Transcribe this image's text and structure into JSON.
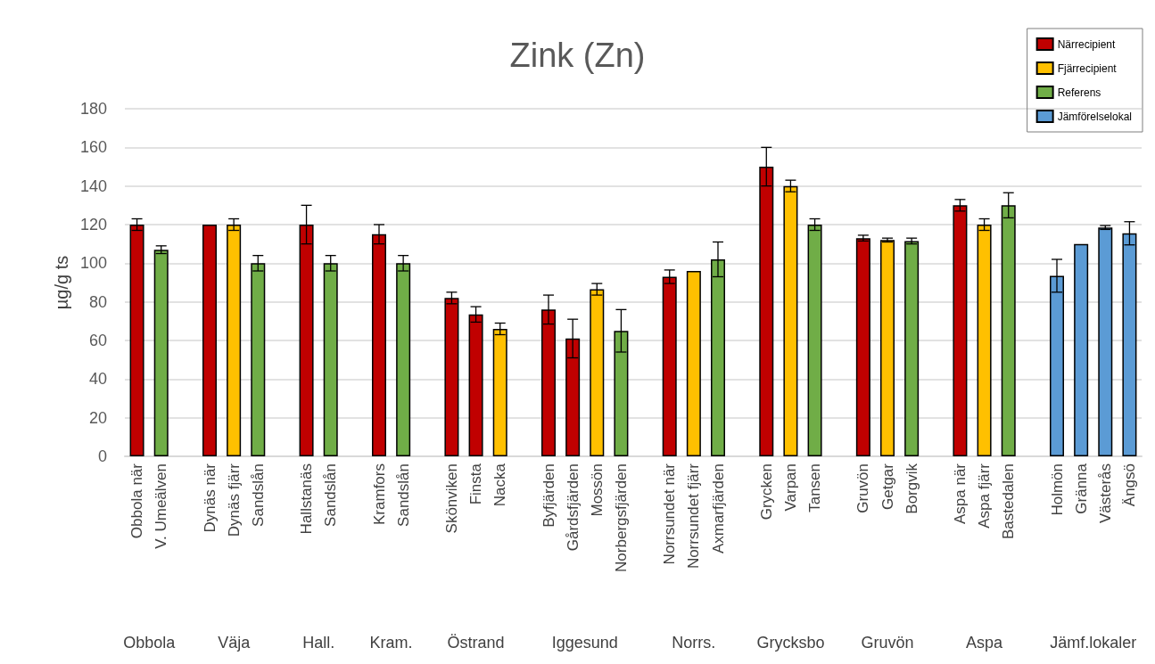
{
  "chart_data": {
    "type": "bar",
    "title": "Zink (Zn)",
    "ylabel": "µg/g ts",
    "categories": [
      "Obbola när",
      "V. Umeälven",
      null,
      "Dynäs när",
      "Dynäs fjärr",
      "Sandslån",
      null,
      "Hallstanäs",
      "Sandslån",
      null,
      "Kramfors",
      "Sandslån",
      null,
      "Skönviken",
      "Finsta",
      "Nacka",
      null,
      "Byfjärden",
      "Gårdsfjärden",
      "Mossön",
      "Norbergsfjärden",
      null,
      "Norrsundet när",
      "Norrsundet fjärr",
      "Axmarfjärden",
      null,
      "Grycken",
      "Varpan",
      "Tansen",
      null,
      "Gruvön",
      "Getgar",
      "Borgvik",
      null,
      "Aspa när",
      "Aspa fjärr",
      "Bastedalen",
      null,
      "Holmön",
      "Gränna",
      "Västerås",
      "Ängsö"
    ],
    "series": [
      {
        "name": "Närrecipient",
        "color": "#c00000",
        "values": [
          120,
          null,
          null,
          120,
          null,
          null,
          null,
          120,
          null,
          null,
          115,
          null,
          null,
          82,
          73.5,
          null,
          null,
          76,
          61,
          null,
          null,
          null,
          93,
          null,
          null,
          null,
          150,
          null,
          null,
          null,
          113,
          null,
          null,
          null,
          130,
          null,
          null,
          null,
          null,
          null,
          null,
          null
        ],
        "errors": [
          3,
          null,
          null,
          null,
          null,
          null,
          null,
          10,
          null,
          null,
          5,
          null,
          null,
          3,
          4,
          null,
          null,
          7.5,
          10,
          null,
          null,
          null,
          3.5,
          null,
          null,
          null,
          10,
          null,
          null,
          null,
          1.5,
          null,
          null,
          null,
          3,
          null,
          null,
          null,
          null,
          null,
          null,
          null
        ]
      },
      {
        "name": "Fjärrecipient",
        "color": "#ffc000",
        "values": [
          null,
          null,
          null,
          null,
          120,
          null,
          null,
          null,
          null,
          null,
          null,
          null,
          null,
          null,
          null,
          66,
          null,
          null,
          null,
          86.5,
          null,
          null,
          null,
          96,
          null,
          null,
          null,
          140,
          null,
          null,
          null,
          112,
          null,
          null,
          null,
          120,
          null,
          null,
          null,
          null,
          null,
          null
        ],
        "errors": [
          null,
          null,
          null,
          null,
          3,
          null,
          null,
          null,
          null,
          null,
          null,
          null,
          null,
          null,
          null,
          3,
          null,
          null,
          null,
          3,
          null,
          null,
          null,
          null,
          null,
          null,
          null,
          3,
          null,
          null,
          null,
          1,
          null,
          null,
          null,
          3,
          null,
          null,
          null,
          null,
          null,
          null
        ]
      },
      {
        "name": "Referens",
        "color": "#70ad47",
        "values": [
          null,
          107,
          null,
          null,
          null,
          100,
          null,
          null,
          100,
          null,
          null,
          100,
          null,
          null,
          null,
          null,
          null,
          null,
          null,
          null,
          65,
          null,
          null,
          null,
          102,
          null,
          null,
          null,
          120,
          null,
          null,
          null,
          111.5,
          null,
          null,
          null,
          130,
          null,
          null,
          null,
          null,
          null
        ],
        "errors": [
          null,
          2,
          null,
          null,
          null,
          4,
          null,
          null,
          4,
          null,
          null,
          4,
          null,
          null,
          null,
          null,
          null,
          null,
          null,
          null,
          11,
          null,
          null,
          null,
          9,
          null,
          null,
          null,
          3,
          null,
          null,
          null,
          1.5,
          null,
          null,
          null,
          6.5,
          null,
          null,
          null,
          null,
          null
        ]
      },
      {
        "name": "Jämförelselokal",
        "color": "#5b9bd5",
        "values": [
          null,
          null,
          null,
          null,
          null,
          null,
          null,
          null,
          null,
          null,
          null,
          null,
          null,
          null,
          null,
          null,
          null,
          null,
          null,
          null,
          null,
          null,
          null,
          null,
          null,
          null,
          null,
          null,
          null,
          null,
          null,
          null,
          null,
          null,
          null,
          null,
          null,
          null,
          93.5,
          110,
          118.5,
          115.5
        ],
        "errors": [
          null,
          null,
          null,
          null,
          null,
          null,
          null,
          null,
          null,
          null,
          null,
          null,
          null,
          null,
          null,
          null,
          null,
          null,
          null,
          null,
          null,
          null,
          null,
          null,
          null,
          null,
          null,
          null,
          null,
          null,
          null,
          null,
          null,
          null,
          null,
          null,
          null,
          null,
          8.5,
          null,
          1,
          6
        ]
      }
    ],
    "stacked": true,
    "annotations": [
      "Obbola",
      "Väja",
      "Hall.",
      "Kram.",
      "Östrand",
      "Iggesund",
      "Norrs.",
      "Grycksbo",
      "Gruvön",
      "Aspa",
      "Jämf.lokaler"
    ],
    "ylim": [
      0,
      180
    ],
    "yticks": [
      0,
      20,
      40,
      60,
      80,
      100,
      120,
      140,
      160,
      180
    ],
    "grid": "y",
    "legend": "top right"
  }
}
